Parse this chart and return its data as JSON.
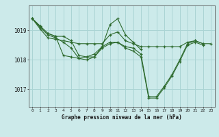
{
  "bg_color": "#cceaea",
  "grid_color": "#aad4d4",
  "line_color": "#2d6a2d",
  "marker_color": "#2d6a2d",
  "title": "Graphe pression niveau de la mer (hPa)",
  "xlim": [
    -0.5,
    23.5
  ],
  "ylim": [
    1016.4,
    1019.85
  ],
  "yticks": [
    1017,
    1018,
    1019
  ],
  "xticks": [
    0,
    1,
    2,
    3,
    4,
    5,
    6,
    7,
    8,
    9,
    10,
    11,
    12,
    13,
    14,
    15,
    16,
    17,
    18,
    19,
    20,
    21,
    22,
    23
  ],
  "series": [
    [
      1019.4,
      1019.05,
      1018.75,
      1018.7,
      1018.65,
      1018.6,
      1018.55,
      1018.55,
      1018.55,
      1018.55,
      1018.85,
      1018.95,
      1018.65,
      1018.55,
      1018.45,
      1018.45,
      1018.45,
      1018.45,
      1018.45,
      1018.45,
      1018.6,
      1018.65,
      1018.55,
      1018.55
    ],
    [
      1019.4,
      1019.15,
      1018.9,
      1018.8,
      1018.8,
      1018.65,
      1018.15,
      1018.1,
      1018.1,
      1018.45,
      1019.2,
      1019.4,
      1018.85,
      1018.6,
      1018.35,
      null,
      null,
      null,
      null,
      null,
      null,
      null,
      null,
      null
    ],
    [
      1019.4,
      1019.15,
      1018.9,
      1018.8,
      1018.15,
      1018.1,
      1018.05,
      1018.1,
      1018.2,
      1018.45,
      1018.6,
      1018.6,
      1018.45,
      1018.4,
      1018.2,
      1016.75,
      1016.75,
      1017.1,
      1017.5,
      1018.0,
      1018.55,
      1018.65,
      1018.55,
      null
    ],
    [
      1019.4,
      1019.1,
      1018.85,
      1018.75,
      1018.6,
      1018.4,
      1018.05,
      1018.0,
      1018.1,
      1018.4,
      1018.55,
      1018.6,
      1018.4,
      1018.3,
      1018.1,
      1016.7,
      1016.7,
      1017.05,
      1017.45,
      1017.95,
      1018.5,
      1018.6,
      1018.5,
      null
    ]
  ]
}
